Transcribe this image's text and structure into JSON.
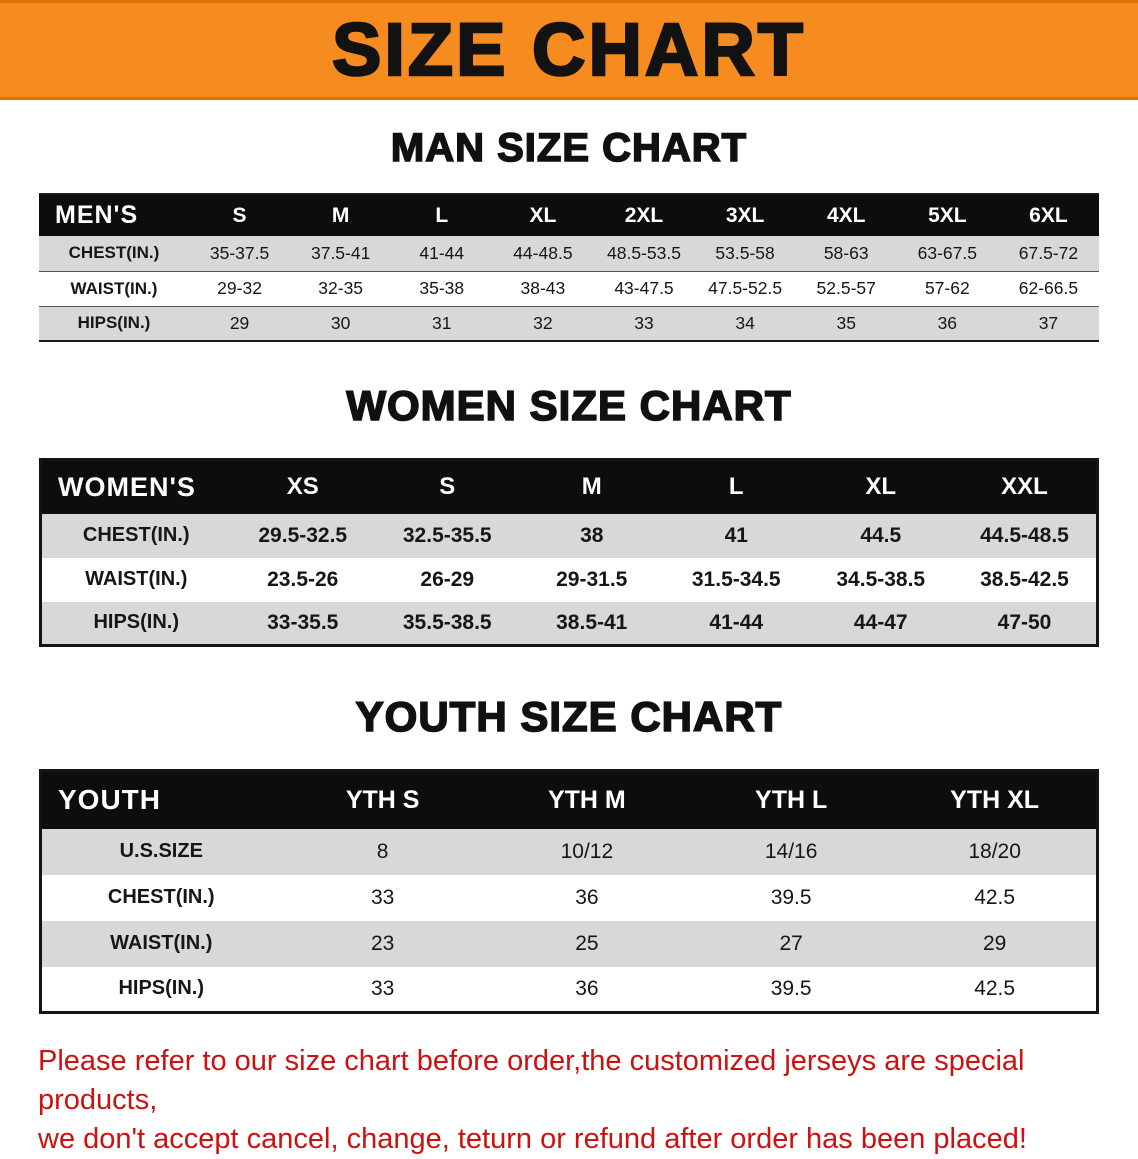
{
  "banner": {
    "title": "SIZE CHART"
  },
  "men": {
    "heading": "MAN SIZE CHART",
    "table": {
      "header": [
        "MEN'S",
        "S",
        "M",
        "L",
        "XL",
        "2XL",
        "3XL",
        "4XL",
        "5XL",
        "6XL"
      ],
      "rows": [
        [
          "CHEST(IN.)",
          "35-37.5",
          "37.5-41",
          "41-44",
          "44-48.5",
          "48.5-53.5",
          "53.5-58",
          "58-63",
          "63-67.5",
          "67.5-72"
        ],
        [
          "WAIST(IN.)",
          "29-32",
          "32-35",
          "35-38",
          "38-43",
          "43-47.5",
          "47.5-52.5",
          "52.5-57",
          "57-62",
          "62-66.5"
        ],
        [
          "HIPS(IN.)",
          "29",
          "30",
          "31",
          "32",
          "33",
          "34",
          "35",
          "36",
          "37"
        ]
      ]
    }
  },
  "women": {
    "heading": "WOMEN SIZE CHART",
    "table": {
      "header": [
        "WOMEN'S",
        "XS",
        "S",
        "M",
        "L",
        "XL",
        "XXL"
      ],
      "rows": [
        [
          "CHEST(IN.)",
          "29.5-32.5",
          "32.5-35.5",
          "38",
          "41",
          "44.5",
          "44.5-48.5"
        ],
        [
          "WAIST(IN.)",
          "23.5-26",
          "26-29",
          "29-31.5",
          "31.5-34.5",
          "34.5-38.5",
          "38.5-42.5"
        ],
        [
          "HIPS(IN.)",
          "33-35.5",
          "35.5-38.5",
          "38.5-41",
          "41-44",
          "44-47",
          "47-50"
        ]
      ]
    }
  },
  "youth": {
    "heading": "YOUTH SIZE CHART",
    "table": {
      "header": [
        "YOUTH",
        "YTH S",
        "YTH M",
        "YTH L",
        "YTH XL"
      ],
      "rows": [
        [
          "U.S.SIZE",
          "8",
          "10/12",
          "14/16",
          "18/20"
        ],
        [
          "CHEST(IN.)",
          "33",
          "36",
          "39.5",
          "42.5"
        ],
        [
          "WAIST(IN.)",
          "23",
          "25",
          "27",
          "29"
        ],
        [
          "HIPS(IN.)",
          "33",
          "36",
          "39.5",
          "42.5"
        ]
      ]
    }
  },
  "footer": {
    "lines": [
      "Please refer to our size chart before order,the customized jerseys are special products,",
      "we don't accept cancel, change, teturn or refund after order has been placed!"
    ]
  },
  "colors": {
    "accent_orange": "#F68B1F",
    "row_gray": "#D8D8D8",
    "header_black": "#0D0D0D",
    "footer_red": "#CC1111"
  }
}
